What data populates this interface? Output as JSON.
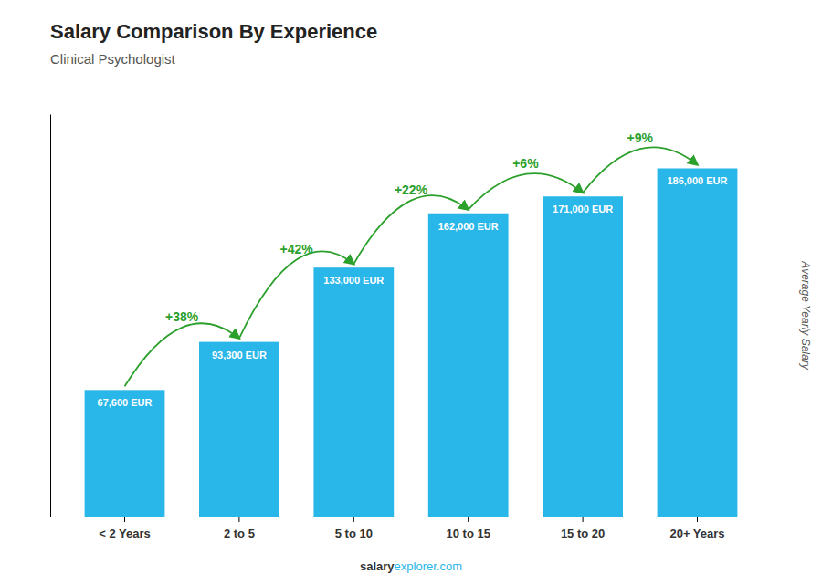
{
  "chart_data": {
    "type": "bar",
    "title": "Salary Comparison By Experience",
    "subtitle": "Clinical Psychologist",
    "categories": [
      "< 2 Years",
      "2 to 5",
      "5 to 10",
      "10 to 15",
      "15 to 20",
      "20+ Years"
    ],
    "values": [
      67600,
      93300,
      133000,
      162000,
      171000,
      186000
    ],
    "value_labels": [
      "67,600 EUR",
      "93,300 EUR",
      "133,000 EUR",
      "162,000 EUR",
      "171,000 EUR",
      "186,000 EUR"
    ],
    "data_labels": true,
    "color": "#29b6e8",
    "ylim": [
      0,
      215000
    ],
    "ylabel": "Average Yearly Salary",
    "annotations": [
      "+38%",
      "+42%",
      "+22%",
      "+6%",
      "+9%"
    ],
    "footer": [
      "salary",
      "explorer.com"
    ],
    "grid": false,
    "tick_labels": "x"
  }
}
